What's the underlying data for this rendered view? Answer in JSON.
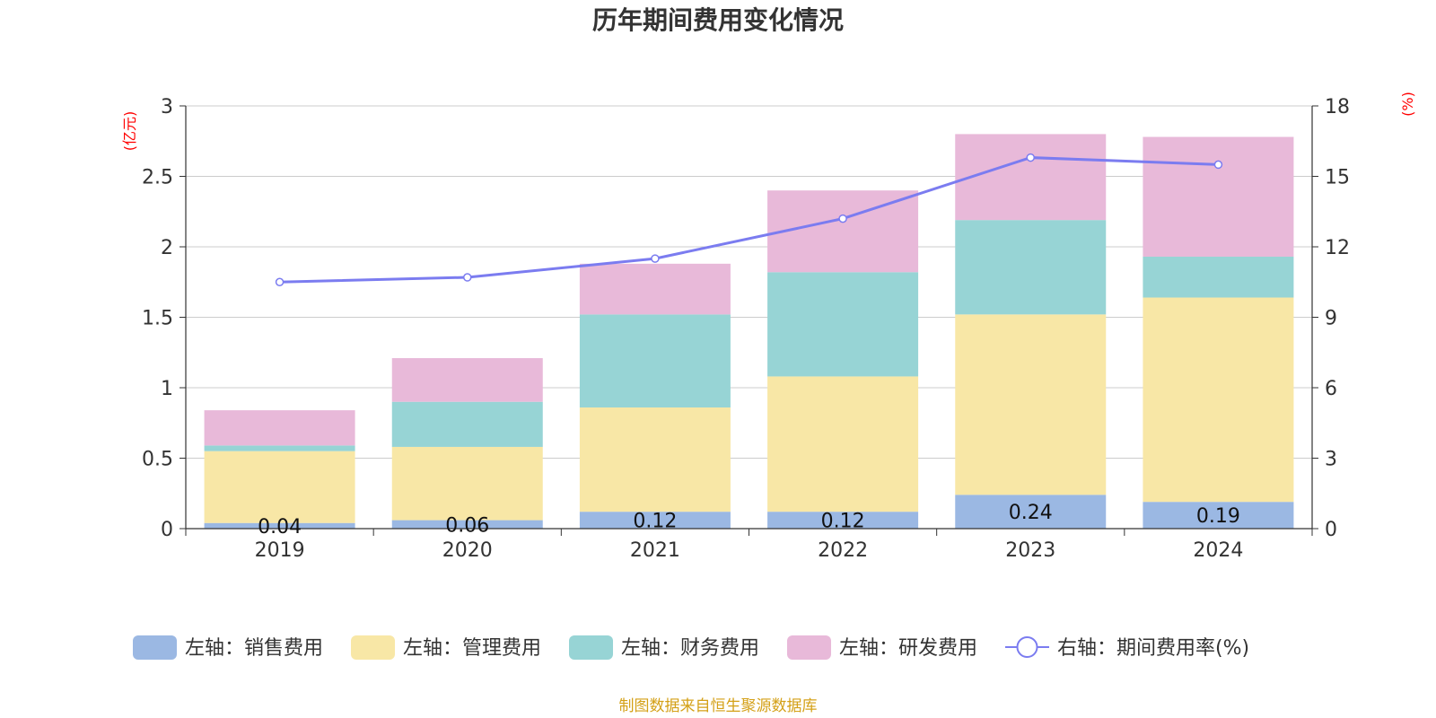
{
  "chart_data": {
    "type": "bar",
    "stacked": true,
    "title": "历年期间费用变化情况",
    "categories": [
      "2019",
      "2020",
      "2021",
      "2022",
      "2023",
      "2024"
    ],
    "y_left": {
      "unit": "(亿元)",
      "range": [
        0,
        3
      ],
      "ticks": [
        "0",
        "0.5",
        "1",
        "1.5",
        "2",
        "2.5",
        "3"
      ]
    },
    "y_right": {
      "unit": "(%)",
      "range": [
        0,
        18
      ],
      "ticks": [
        "0",
        "3",
        "6",
        "9",
        "12",
        "15",
        "18"
      ]
    },
    "grid": true,
    "legend_position": "bottom",
    "series": [
      {
        "name": "左轴：销售费用",
        "axis": "left",
        "type": "bar",
        "color": "#9bb8e3",
        "values": [
          0.04,
          0.06,
          0.12,
          0.12,
          0.24,
          0.19
        ],
        "labels": [
          "0.04",
          "0.06",
          "0.12",
          "0.12",
          "0.24",
          "0.19"
        ]
      },
      {
        "name": "左轴：管理费用",
        "axis": "left",
        "type": "bar",
        "color": "#f8e7a6",
        "values": [
          0.51,
          0.52,
          0.74,
          0.96,
          1.28,
          1.45
        ]
      },
      {
        "name": "左轴：财务费用",
        "axis": "left",
        "type": "bar",
        "color": "#97d4d5",
        "values": [
          0.04,
          0.32,
          0.66,
          0.74,
          0.67,
          0.29
        ]
      },
      {
        "name": "左轴：研发费用",
        "axis": "left",
        "type": "bar",
        "color": "#e8b9d9",
        "values": [
          0.25,
          0.31,
          0.36,
          0.58,
          0.61,
          0.85
        ]
      },
      {
        "name": "右轴：期间费用率(%)",
        "axis": "right",
        "type": "line",
        "color": "#7b7cf0",
        "values": [
          10.5,
          10.7,
          11.5,
          13.2,
          15.8,
          15.5
        ]
      }
    ],
    "source": "制图数据来自恒生聚源数据库"
  }
}
